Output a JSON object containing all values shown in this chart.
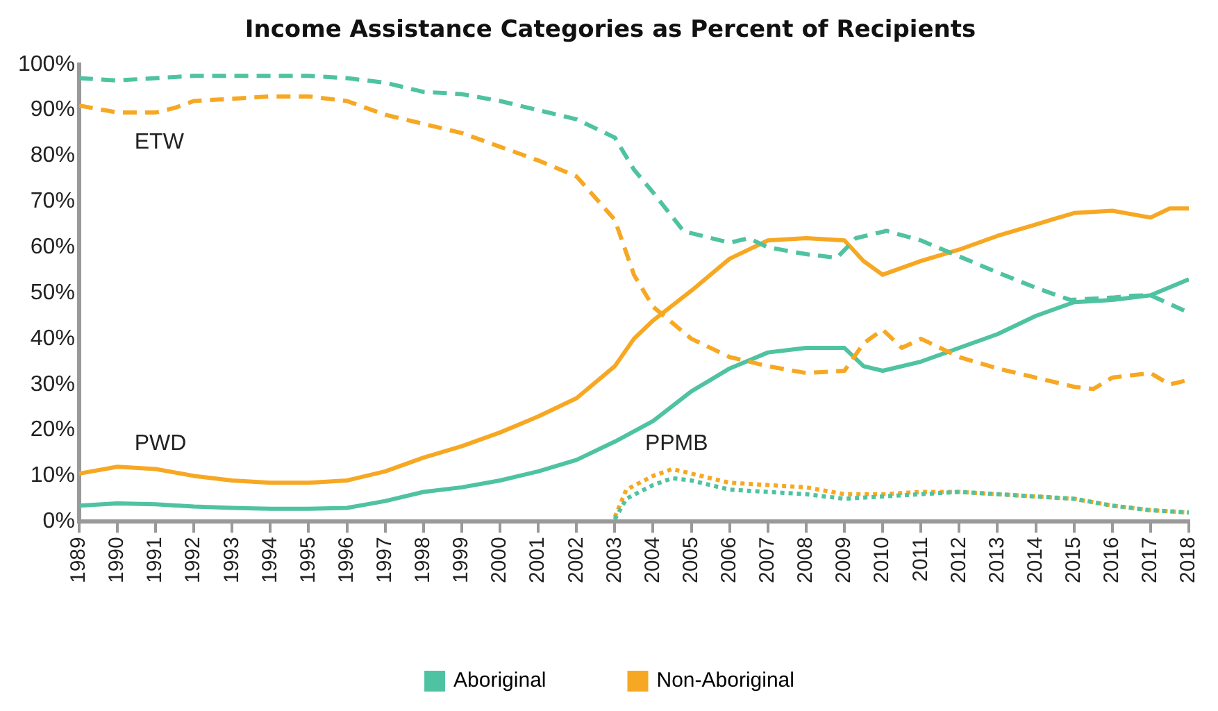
{
  "chart_data": {
    "type": "line",
    "title": "Income Assistance Categories as Percent of Recipients",
    "xlim": [
      1989,
      2018
    ],
    "xticks": [
      1989,
      1990,
      1991,
      1992,
      1993,
      1994,
      1995,
      1996,
      1997,
      1998,
      1999,
      2000,
      2001,
      2002,
      2003,
      2004,
      2005,
      2006,
      2007,
      2008,
      2009,
      2010,
      2011,
      2012,
      2013,
      2014,
      2015,
      2016,
      2017,
      2018
    ],
    "ylim": [
      0,
      100
    ],
    "yticks": [
      {
        "value": 0,
        "label": "0%"
      },
      {
        "value": 10,
        "label": "10%"
      },
      {
        "value": 20,
        "label": "20%"
      },
      {
        "value": 30,
        "label": "30%"
      },
      {
        "value": 40,
        "label": "40%"
      },
      {
        "value": 50,
        "label": "50%"
      },
      {
        "value": 60,
        "label": "60%"
      },
      {
        "value": 70,
        "label": "70%"
      },
      {
        "value": 80,
        "label": "80%"
      },
      {
        "value": 90,
        "label": "90%"
      },
      {
        "value": 100,
        "label": "100%"
      }
    ],
    "grid": false,
    "legend": "bottom",
    "marker": "none",
    "annotations": [
      "ETW",
      "PWD",
      "PPMB"
    ],
    "series": [
      {
        "color": "#4fc3a1",
        "line_style": "dashed",
        "x": [
          1989,
          1990,
          1991,
          1992,
          1993,
          1994,
          1995,
          1996,
          1997,
          1998,
          1999,
          2000,
          2001,
          2002,
          2003,
          2003.5,
          2004,
          2004.8,
          2006,
          2006.5,
          2007,
          2008,
          2008.8,
          2009.3,
          2010.1,
          2011,
          2012,
          2013,
          2014.05,
          2014.9,
          2016,
          2016.5,
          2017,
          2018
        ],
        "values": [
          97,
          96.5,
          97,
          97.5,
          97.5,
          97.5,
          97.5,
          97,
          96,
          94,
          93.5,
          92,
          90,
          88,
          84,
          77,
          72,
          63.5,
          61,
          62,
          60,
          58.5,
          57.7,
          62,
          63.6,
          61.5,
          58,
          54.5,
          51,
          48.5,
          49,
          49.4,
          49.5,
          45.7
        ]
      },
      {
        "color": "#f7a823",
        "line_style": "dashed",
        "x": [
          1989,
          1990,
          1991,
          1991.5,
          1992,
          1993,
          1994,
          1995,
          1996,
          1997,
          1998,
          1999,
          2000,
          2001,
          2002,
          2003,
          2003.5,
          2004,
          2005,
          2006,
          2007,
          2008,
          2009,
          2009.5,
          2010,
          2010.5,
          2011,
          2012,
          2013,
          2014,
          2015,
          2015.5,
          2016,
          2017,
          2017.5,
          2018
        ],
        "values": [
          91,
          89.5,
          89.5,
          90.5,
          92,
          92.5,
          93,
          93,
          92,
          89,
          87,
          85,
          82,
          79,
          75.5,
          66,
          54,
          47,
          40,
          36,
          34,
          32.5,
          33,
          39,
          42,
          38,
          40,
          36,
          33.5,
          31.5,
          29.5,
          29,
          31.5,
          32.5,
          30,
          31
        ]
      },
      {
        "name": "Aboriginal",
        "color": "#4fc3a1",
        "line_style": "solid",
        "x": [
          1989,
          1990,
          1991,
          1992,
          1993,
          1994,
          1995,
          1996,
          1997,
          1998,
          1999,
          2000,
          2001,
          2002,
          2003,
          2004,
          2005,
          2006,
          2007,
          2008,
          2009,
          2009.5,
          2010,
          2011,
          2012,
          2013,
          2014,
          2015,
          2016,
          2017,
          2018
        ],
        "values": [
          3.5,
          4,
          3.8,
          3.3,
          3,
          2.8,
          2.8,
          3,
          4.5,
          6.5,
          7.5,
          9,
          11,
          13.5,
          17.5,
          22,
          28.5,
          33.5,
          37,
          38,
          38,
          34,
          33,
          35,
          38,
          41,
          45,
          48,
          48.5,
          49.5,
          53
        ]
      },
      {
        "name": "Non-Aboriginal",
        "color": "#f7a823",
        "line_style": "solid",
        "x": [
          1989,
          1990,
          1991,
          1992,
          1993,
          1994,
          1995,
          1996,
          1997,
          1998,
          1999,
          2000,
          2001,
          2002,
          2003,
          2003.5,
          2004,
          2005,
          2006,
          2007,
          2008,
          2009,
          2009.5,
          2010,
          2011,
          2012,
          2013,
          2014,
          2015,
          2016,
          2017,
          2017.5,
          2018
        ],
        "values": [
          10.5,
          12,
          11.5,
          10,
          9,
          8.5,
          8.5,
          9,
          11,
          14,
          16.5,
          19.5,
          23,
          27,
          34,
          40,
          44,
          50.5,
          57.5,
          61.5,
          62,
          61.5,
          57,
          54,
          57,
          59.5,
          62.5,
          65,
          67.5,
          68,
          66.5,
          68.5,
          68.5
        ]
      },
      {
        "color": "#4fc3a1",
        "line_style": "dotted",
        "x": [
          2003,
          2003.3,
          2004,
          2004.5,
          2005,
          2006,
          2007,
          2008,
          2009,
          2010,
          2011,
          2012,
          2013,
          2014,
          2015,
          2016,
          2017,
          2018
        ],
        "values": [
          0.5,
          5,
          8,
          9.5,
          9,
          7,
          6.5,
          6,
          5,
          5.5,
          6,
          6.5,
          6,
          5.5,
          5,
          3.5,
          2.5,
          2
        ]
      },
      {
        "color": "#f7a823",
        "line_style": "dotted",
        "x": [
          2003,
          2003.3,
          2004,
          2004.5,
          2005,
          2006,
          2007,
          2008,
          2009,
          2010,
          2011,
          2012,
          2013,
          2014,
          2015,
          2016,
          2017,
          2018
        ],
        "values": [
          1,
          7,
          10,
          11.5,
          10.5,
          8.5,
          8,
          7.5,
          6,
          6,
          6.5,
          6.5,
          6,
          5.5,
          5,
          3.5,
          2.5,
          2
        ]
      }
    ]
  }
}
